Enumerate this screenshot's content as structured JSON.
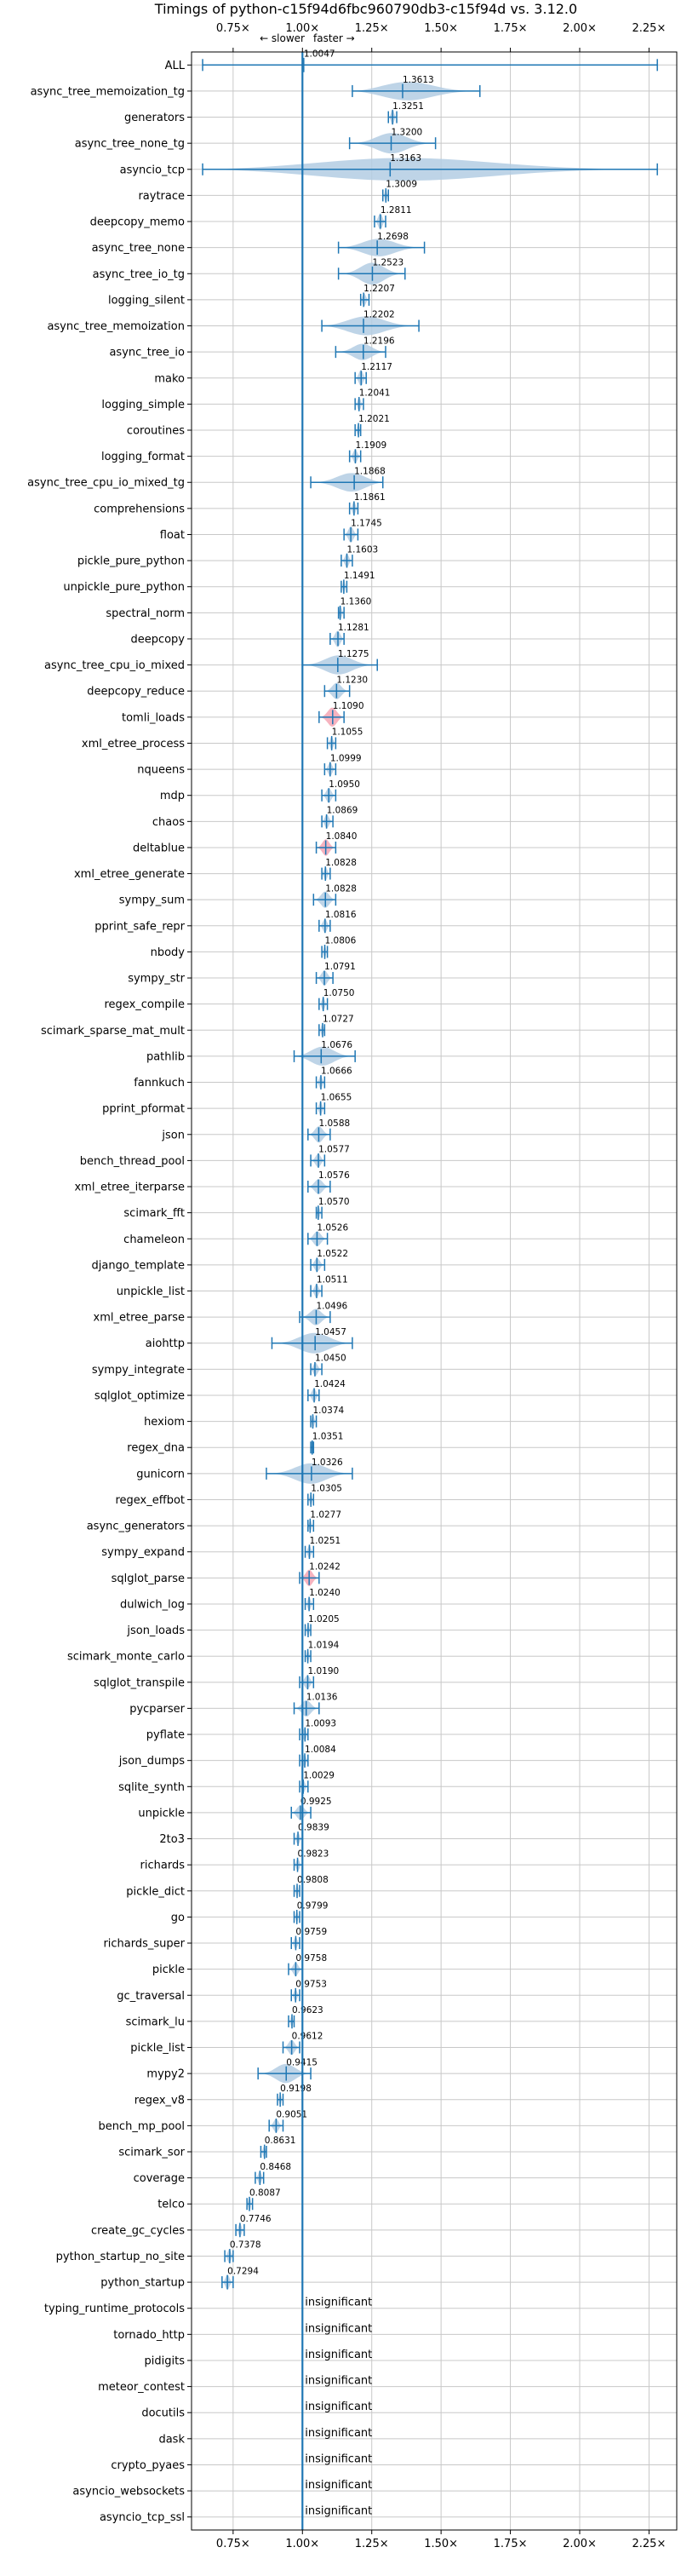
{
  "chart_data": {
    "type": "violin",
    "title": "Timings of python-c15f94d6fbc960790db3-c15f94d vs. 3.12.0",
    "direction_labels": {
      "slower": "← slower",
      "faster": "faster →"
    },
    "xlim": [
      0.6,
      2.35
    ],
    "x_ticks": [
      0.75,
      1.0,
      1.25,
      1.5,
      1.75,
      2.0,
      2.25
    ],
    "x_tick_labels": [
      "0.75×",
      "1.00×",
      "1.25×",
      "1.50×",
      "1.75×",
      "2.00×",
      "2.25×"
    ],
    "grid": true,
    "reference_line": 1.0,
    "insignificant_label": "insignificant",
    "benchmarks": [
      {
        "name": "ALL",
        "value": 1.0047,
        "label": "1.0047",
        "min": 0.64,
        "max": 2.28,
        "spread": 0.03
      },
      {
        "name": "async_tree_memoization_tg",
        "value": 1.3613,
        "label": "1.3613",
        "min": 1.18,
        "max": 1.64,
        "spread": 0.7
      },
      {
        "name": "generators",
        "value": 1.3251,
        "label": "1.3251",
        "min": 1.31,
        "max": 1.34,
        "spread": 0.6
      },
      {
        "name": "async_tree_none_tg",
        "value": 1.32,
        "label": "1.3200",
        "min": 1.17,
        "max": 1.48,
        "spread": 0.75
      },
      {
        "name": "asyncio_tcp",
        "value": 1.3163,
        "label": "1.3163",
        "min": 0.64,
        "max": 2.28,
        "spread": 0.85
      },
      {
        "name": "raytrace",
        "value": 1.3009,
        "label": "1.3009",
        "min": 1.29,
        "max": 1.31,
        "spread": 0.5
      },
      {
        "name": "deepcopy_memo",
        "value": 1.2811,
        "label": "1.2811",
        "min": 1.26,
        "max": 1.3,
        "spread": 0.6
      },
      {
        "name": "async_tree_none",
        "value": 1.2698,
        "label": "1.2698",
        "min": 1.13,
        "max": 1.44,
        "spread": 0.65
      },
      {
        "name": "async_tree_io_tg",
        "value": 1.2523,
        "label": "1.2523",
        "min": 1.13,
        "max": 1.37,
        "spread": 0.8
      },
      {
        "name": "logging_silent",
        "value": 1.2207,
        "label": "1.2207",
        "min": 1.21,
        "max": 1.24,
        "spread": 0.5
      },
      {
        "name": "async_tree_memoization",
        "value": 1.2202,
        "label": "1.2202",
        "min": 1.07,
        "max": 1.42,
        "spread": 0.7
      },
      {
        "name": "async_tree_io",
        "value": 1.2196,
        "label": "1.2196",
        "min": 1.12,
        "max": 1.3,
        "spread": 0.6
      },
      {
        "name": "mako",
        "value": 1.2117,
        "label": "1.2117",
        "min": 1.19,
        "max": 1.23,
        "spread": 0.6
      },
      {
        "name": "logging_simple",
        "value": 1.2041,
        "label": "1.2041",
        "min": 1.19,
        "max": 1.22,
        "spread": 0.5
      },
      {
        "name": "coroutines",
        "value": 1.2021,
        "label": "1.2021",
        "min": 1.19,
        "max": 1.21,
        "spread": 0.5
      },
      {
        "name": "logging_format",
        "value": 1.1909,
        "label": "1.1909",
        "min": 1.17,
        "max": 1.21,
        "spread": 0.5
      },
      {
        "name": "async_tree_cpu_io_mixed_tg",
        "value": 1.1868,
        "label": "1.1868",
        "min": 1.03,
        "max": 1.29,
        "spread": 0.7
      },
      {
        "name": "comprehensions",
        "value": 1.1861,
        "label": "1.1861",
        "min": 1.17,
        "max": 1.2,
        "spread": 0.5
      },
      {
        "name": "float",
        "value": 1.1745,
        "label": "1.1745",
        "min": 1.15,
        "max": 1.2,
        "spread": 0.6
      },
      {
        "name": "pickle_pure_python",
        "value": 1.1603,
        "label": "1.1603",
        "min": 1.14,
        "max": 1.18,
        "spread": 0.5
      },
      {
        "name": "unpickle_pure_python",
        "value": 1.1491,
        "label": "1.1491",
        "min": 1.14,
        "max": 1.16,
        "spread": 0.5
      },
      {
        "name": "spectral_norm",
        "value": 1.136,
        "label": "1.1360",
        "min": 1.13,
        "max": 1.15,
        "spread": 0.5
      },
      {
        "name": "deepcopy",
        "value": 1.1281,
        "label": "1.1281",
        "min": 1.1,
        "max": 1.15,
        "spread": 0.6
      },
      {
        "name": "async_tree_cpu_io_mixed",
        "value": 1.1275,
        "label": "1.1275",
        "min": 1.0,
        "max": 1.27,
        "spread": 0.7
      },
      {
        "name": "deepcopy_reduce",
        "value": 1.123,
        "label": "1.1230",
        "min": 1.08,
        "max": 1.17,
        "spread": 0.6
      },
      {
        "name": "tomli_loads",
        "value": 1.109,
        "label": "1.1090",
        "min": 1.06,
        "max": 1.15,
        "spread": 0.7,
        "highlight": true
      },
      {
        "name": "xml_etree_process",
        "value": 1.1055,
        "label": "1.1055",
        "min": 1.09,
        "max": 1.12,
        "spread": 0.5
      },
      {
        "name": "nqueens",
        "value": 1.0999,
        "label": "1.0999",
        "min": 1.08,
        "max": 1.12,
        "spread": 0.5
      },
      {
        "name": "mdp",
        "value": 1.095,
        "label": "1.0950",
        "min": 1.07,
        "max": 1.12,
        "spread": 0.55
      },
      {
        "name": "chaos",
        "value": 1.0869,
        "label": "1.0869",
        "min": 1.07,
        "max": 1.11,
        "spread": 0.5
      },
      {
        "name": "deltablue",
        "value": 1.084,
        "label": "1.0840",
        "min": 1.05,
        "max": 1.12,
        "spread": 0.6,
        "highlight": true
      },
      {
        "name": "xml_etree_generate",
        "value": 1.0828,
        "label": "1.0828",
        "min": 1.07,
        "max": 1.1,
        "spread": 0.5
      },
      {
        "name": "sympy_sum",
        "value": 1.0828,
        "label": "1.0828",
        "min": 1.04,
        "max": 1.12,
        "spread": 0.6
      },
      {
        "name": "pprint_safe_repr",
        "value": 1.0816,
        "label": "1.0816",
        "min": 1.06,
        "max": 1.1,
        "spread": 0.5
      },
      {
        "name": "nbody",
        "value": 1.0806,
        "label": "1.0806",
        "min": 1.07,
        "max": 1.09,
        "spread": 0.5
      },
      {
        "name": "sympy_str",
        "value": 1.0791,
        "label": "1.0791",
        "min": 1.05,
        "max": 1.11,
        "spread": 0.55
      },
      {
        "name": "regex_compile",
        "value": 1.075,
        "label": "1.0750",
        "min": 1.06,
        "max": 1.09,
        "spread": 0.5
      },
      {
        "name": "scimark_sparse_mat_mult",
        "value": 1.0727,
        "label": "1.0727",
        "min": 1.06,
        "max": 1.08,
        "spread": 0.5
      },
      {
        "name": "pathlib",
        "value": 1.0676,
        "label": "1.0676",
        "min": 0.97,
        "max": 1.19,
        "spread": 0.7
      },
      {
        "name": "fannkuch",
        "value": 1.0666,
        "label": "1.0666",
        "min": 1.05,
        "max": 1.08,
        "spread": 0.5
      },
      {
        "name": "pprint_pformat",
        "value": 1.0655,
        "label": "1.0655",
        "min": 1.05,
        "max": 1.08,
        "spread": 0.5
      },
      {
        "name": "json",
        "value": 1.0588,
        "label": "1.0588",
        "min": 1.02,
        "max": 1.1,
        "spread": 0.6
      },
      {
        "name": "bench_thread_pool",
        "value": 1.0577,
        "label": "1.0577",
        "min": 1.03,
        "max": 1.08,
        "spread": 0.5
      },
      {
        "name": "xml_etree_iterparse",
        "value": 1.0576,
        "label": "1.0576",
        "min": 1.02,
        "max": 1.1,
        "spread": 0.55
      },
      {
        "name": "scimark_fft",
        "value": 1.057,
        "label": "1.0570",
        "min": 1.05,
        "max": 1.07,
        "spread": 0.5
      },
      {
        "name": "chameleon",
        "value": 1.0526,
        "label": "1.0526",
        "min": 1.02,
        "max": 1.09,
        "spread": 0.55
      },
      {
        "name": "django_template",
        "value": 1.0522,
        "label": "1.0522",
        "min": 1.03,
        "max": 1.08,
        "spread": 0.5
      },
      {
        "name": "unpickle_list",
        "value": 1.0511,
        "label": "1.0511",
        "min": 1.03,
        "max": 1.07,
        "spread": 0.5
      },
      {
        "name": "xml_etree_parse",
        "value": 1.0496,
        "label": "1.0496",
        "min": 0.99,
        "max": 1.1,
        "spread": 0.6
      },
      {
        "name": "aiohttp",
        "value": 1.0457,
        "label": "1.0457",
        "min": 0.89,
        "max": 1.18,
        "spread": 0.75
      },
      {
        "name": "sympy_integrate",
        "value": 1.045,
        "label": "1.0450",
        "min": 1.03,
        "max": 1.07,
        "spread": 0.5
      },
      {
        "name": "sqlglot_optimize",
        "value": 1.0424,
        "label": "1.0424",
        "min": 1.02,
        "max": 1.06,
        "spread": 0.5
      },
      {
        "name": "hexiom",
        "value": 1.0374,
        "label": "1.0374",
        "min": 1.03,
        "max": 1.05,
        "spread": 0.5
      },
      {
        "name": "regex_dna",
        "value": 1.0351,
        "label": "1.0351",
        "min": 1.03,
        "max": 1.04,
        "spread": 0.45
      },
      {
        "name": "gunicorn",
        "value": 1.0326,
        "label": "1.0326",
        "min": 0.87,
        "max": 1.18,
        "spread": 0.75
      },
      {
        "name": "regex_effbot",
        "value": 1.0305,
        "label": "1.0305",
        "min": 1.02,
        "max": 1.04,
        "spread": 0.45
      },
      {
        "name": "async_generators",
        "value": 1.0277,
        "label": "1.0277",
        "min": 1.02,
        "max": 1.04,
        "spread": 0.45
      },
      {
        "name": "sympy_expand",
        "value": 1.0251,
        "label": "1.0251",
        "min": 1.01,
        "max": 1.04,
        "spread": 0.5
      },
      {
        "name": "sqlglot_parse",
        "value": 1.0242,
        "label": "1.0242",
        "min": 0.99,
        "max": 1.06,
        "spread": 0.6,
        "highlight": true
      },
      {
        "name": "dulwich_log",
        "value": 1.024,
        "label": "1.0240",
        "min": 1.01,
        "max": 1.04,
        "spread": 0.5
      },
      {
        "name": "json_loads",
        "value": 1.0205,
        "label": "1.0205",
        "min": 1.01,
        "max": 1.03,
        "spread": 0.45
      },
      {
        "name": "scimark_monte_carlo",
        "value": 1.0194,
        "label": "1.0194",
        "min": 1.01,
        "max": 1.03,
        "spread": 0.45
      },
      {
        "name": "sqlglot_transpile",
        "value": 1.019,
        "label": "1.0190",
        "min": 0.99,
        "max": 1.04,
        "spread": 0.5
      },
      {
        "name": "pycparser",
        "value": 1.0136,
        "label": "1.0136",
        "min": 0.97,
        "max": 1.06,
        "spread": 0.6
      },
      {
        "name": "pyflate",
        "value": 1.0093,
        "label": "1.0093",
        "min": 0.99,
        "max": 1.02,
        "spread": 0.45
      },
      {
        "name": "json_dumps",
        "value": 1.0084,
        "label": "1.0084",
        "min": 0.99,
        "max": 1.02,
        "spread": 0.45
      },
      {
        "name": "sqlite_synth",
        "value": 1.0029,
        "label": "1.0029",
        "min": 0.99,
        "max": 1.02,
        "spread": 0.45
      },
      {
        "name": "unpickle",
        "value": 0.9925,
        "label": "0.9925",
        "min": 0.96,
        "max": 1.03,
        "spread": 0.55
      },
      {
        "name": "2to3",
        "value": 0.9839,
        "label": "0.9839",
        "min": 0.97,
        "max": 1.0,
        "spread": 0.45
      },
      {
        "name": "richards",
        "value": 0.9823,
        "label": "0.9823",
        "min": 0.97,
        "max": 1.0,
        "spread": 0.45
      },
      {
        "name": "pickle_dict",
        "value": 0.9808,
        "label": "0.9808",
        "min": 0.97,
        "max": 0.99,
        "spread": 0.45
      },
      {
        "name": "go",
        "value": 0.9799,
        "label": "0.9799",
        "min": 0.97,
        "max": 0.99,
        "spread": 0.45
      },
      {
        "name": "richards_super",
        "value": 0.9759,
        "label": "0.9759",
        "min": 0.96,
        "max": 0.99,
        "spread": 0.45
      },
      {
        "name": "pickle",
        "value": 0.9758,
        "label": "0.9758",
        "min": 0.95,
        "max": 1.0,
        "spread": 0.5
      },
      {
        "name": "gc_traversal",
        "value": 0.9753,
        "label": "0.9753",
        "min": 0.96,
        "max": 0.99,
        "spread": 0.45
      },
      {
        "name": "scimark_lu",
        "value": 0.9623,
        "label": "0.9623",
        "min": 0.95,
        "max": 0.97,
        "spread": 0.45
      },
      {
        "name": "pickle_list",
        "value": 0.9612,
        "label": "0.9612",
        "min": 0.93,
        "max": 0.99,
        "spread": 0.55
      },
      {
        "name": "mypy2",
        "value": 0.9415,
        "label": "0.9415",
        "min": 0.84,
        "max": 1.03,
        "spread": 0.7
      },
      {
        "name": "regex_v8",
        "value": 0.9198,
        "label": "0.9198",
        "min": 0.91,
        "max": 0.93,
        "spread": 0.45
      },
      {
        "name": "bench_mp_pool",
        "value": 0.9051,
        "label": "0.9051",
        "min": 0.88,
        "max": 0.93,
        "spread": 0.5
      },
      {
        "name": "scimark_sor",
        "value": 0.8631,
        "label": "0.8631",
        "min": 0.85,
        "max": 0.87,
        "spread": 0.45
      },
      {
        "name": "coverage",
        "value": 0.8468,
        "label": "0.8468",
        "min": 0.83,
        "max": 0.86,
        "spread": 0.5
      },
      {
        "name": "telco",
        "value": 0.8087,
        "label": "0.8087",
        "min": 0.8,
        "max": 0.82,
        "spread": 0.5
      },
      {
        "name": "create_gc_cycles",
        "value": 0.7746,
        "label": "0.7746",
        "min": 0.76,
        "max": 0.79,
        "spread": 0.5
      },
      {
        "name": "python_startup_no_site",
        "value": 0.7378,
        "label": "0.7378",
        "min": 0.72,
        "max": 0.75,
        "spread": 0.55
      },
      {
        "name": "python_startup",
        "value": 0.7294,
        "label": "0.7294",
        "min": 0.71,
        "max": 0.75,
        "spread": 0.55
      },
      {
        "name": "typing_runtime_protocols",
        "insignificant": true
      },
      {
        "name": "tornado_http",
        "insignificant": true
      },
      {
        "name": "pidigits",
        "insignificant": true
      },
      {
        "name": "meteor_contest",
        "insignificant": true
      },
      {
        "name": "docutils",
        "insignificant": true
      },
      {
        "name": "dask",
        "insignificant": true
      },
      {
        "name": "crypto_pyaes",
        "insignificant": true
      },
      {
        "name": "asyncio_websockets",
        "insignificant": true
      },
      {
        "name": "asyncio_tcp_ssl",
        "insignificant": true
      }
    ]
  },
  "colors": {
    "violin": "#b3cde3",
    "highlight": "#f4a6b4",
    "line": "#1f77b4",
    "grid": "#c8c8c8",
    "axis": "#000000"
  }
}
